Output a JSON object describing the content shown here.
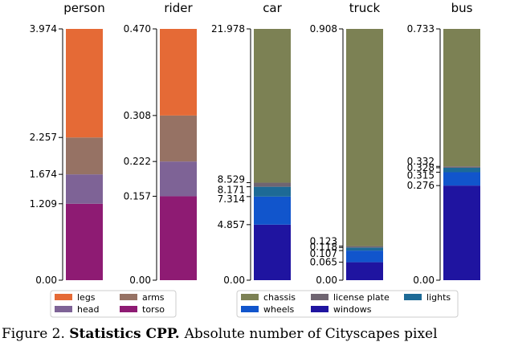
{
  "chart_data": [
    {
      "type": "bar",
      "stacked": true,
      "title": "person",
      "ylim": [
        0,
        3.974
      ],
      "ticks": [
        "0.00",
        "1.209",
        "1.674",
        "2.257",
        "3.974"
      ],
      "series": [
        {
          "name": "torso",
          "color": "#8e1b73",
          "from": 0,
          "to": 1.209
        },
        {
          "name": "head",
          "color": "#7e6396",
          "from": 1.209,
          "to": 1.674
        },
        {
          "name": "arms",
          "color": "#967264",
          "from": 1.674,
          "to": 2.257
        },
        {
          "name": "legs",
          "color": "#e56a36",
          "from": 2.257,
          "to": 3.974
        }
      ]
    },
    {
      "type": "bar",
      "stacked": true,
      "title": "rider",
      "ylim": [
        0,
        0.47
      ],
      "ticks": [
        "0.00",
        "0.157",
        "0.222",
        "0.308",
        "0.470"
      ],
      "series": [
        {
          "name": "torso",
          "color": "#8e1b73",
          "from": 0,
          "to": 0.157
        },
        {
          "name": "head",
          "color": "#7e6396",
          "from": 0.157,
          "to": 0.222
        },
        {
          "name": "arms",
          "color": "#967264",
          "from": 0.222,
          "to": 0.308
        },
        {
          "name": "legs",
          "color": "#e56a36",
          "from": 0.308,
          "to": 0.47
        }
      ]
    },
    {
      "type": "bar",
      "stacked": true,
      "title": "car",
      "ylim": [
        0,
        21.978
      ],
      "ticks": [
        "0.00",
        "4.857",
        "7.314",
        "8.171",
        "8.529",
        "21.978"
      ],
      "series": [
        {
          "name": "windows",
          "color": "#1f14a0",
          "from": 0,
          "to": 4.857
        },
        {
          "name": "wheels",
          "color": "#1155cc",
          "from": 4.857,
          "to": 7.314
        },
        {
          "name": "lights",
          "color": "#1d6a96",
          "from": 7.314,
          "to": 8.171
        },
        {
          "name": "license plate",
          "color": "#6f6571",
          "from": 8.171,
          "to": 8.529
        },
        {
          "name": "chassis",
          "color": "#7c8154",
          "from": 8.529,
          "to": 21.978
        }
      ]
    },
    {
      "type": "bar",
      "stacked": true,
      "title": "truck",
      "ylim": [
        0,
        0.908
      ],
      "ticks": [
        "0.00",
        "0.065",
        "0.107",
        "0.118",
        "0.123",
        "0.908"
      ],
      "series": [
        {
          "name": "windows",
          "color": "#1f14a0",
          "from": 0,
          "to": 0.065
        },
        {
          "name": "wheels",
          "color": "#1155cc",
          "from": 0.065,
          "to": 0.107
        },
        {
          "name": "lights",
          "color": "#1d6a96",
          "from": 0.107,
          "to": 0.118
        },
        {
          "name": "license plate",
          "color": "#6f6571",
          "from": 0.118,
          "to": 0.123
        },
        {
          "name": "chassis",
          "color": "#7c8154",
          "from": 0.123,
          "to": 0.908
        }
      ]
    },
    {
      "type": "bar",
      "stacked": true,
      "title": "bus",
      "ylim": [
        0,
        0.733
      ],
      "ticks": [
        "0.00",
        "0.276",
        "0.315",
        "0.328",
        "0.332",
        "0.733"
      ],
      "series": [
        {
          "name": "windows",
          "color": "#1f14a0",
          "from": 0,
          "to": 0.276
        },
        {
          "name": "wheels",
          "color": "#1155cc",
          "from": 0.276,
          "to": 0.315
        },
        {
          "name": "lights",
          "color": "#1d6a96",
          "from": 0.315,
          "to": 0.328
        },
        {
          "name": "license plate",
          "color": "#6f6571",
          "from": 0.328,
          "to": 0.332
        },
        {
          "name": "chassis",
          "color": "#7c8154",
          "from": 0.332,
          "to": 0.733
        }
      ]
    }
  ],
  "legends": [
    {
      "name": "person-rider-legend",
      "entries": [
        {
          "label": "legs",
          "color": "#e56a36"
        },
        {
          "label": "arms",
          "color": "#967264"
        },
        {
          "label": "head",
          "color": "#7e6396"
        },
        {
          "label": "torso",
          "color": "#8e1b73"
        }
      ]
    },
    {
      "name": "vehicle-legend",
      "entries": [
        {
          "label": "chassis",
          "color": "#7c8154"
        },
        {
          "label": "license plate",
          "color": "#6f6571"
        },
        {
          "label": "lights",
          "color": "#1d6a96"
        },
        {
          "label": "wheels",
          "color": "#1155cc"
        },
        {
          "label": "windows",
          "color": "#1f14a0"
        }
      ]
    }
  ],
  "caption": "Figure 2. Statistics CPP. Absolute number of Cityscapes pixel"
}
